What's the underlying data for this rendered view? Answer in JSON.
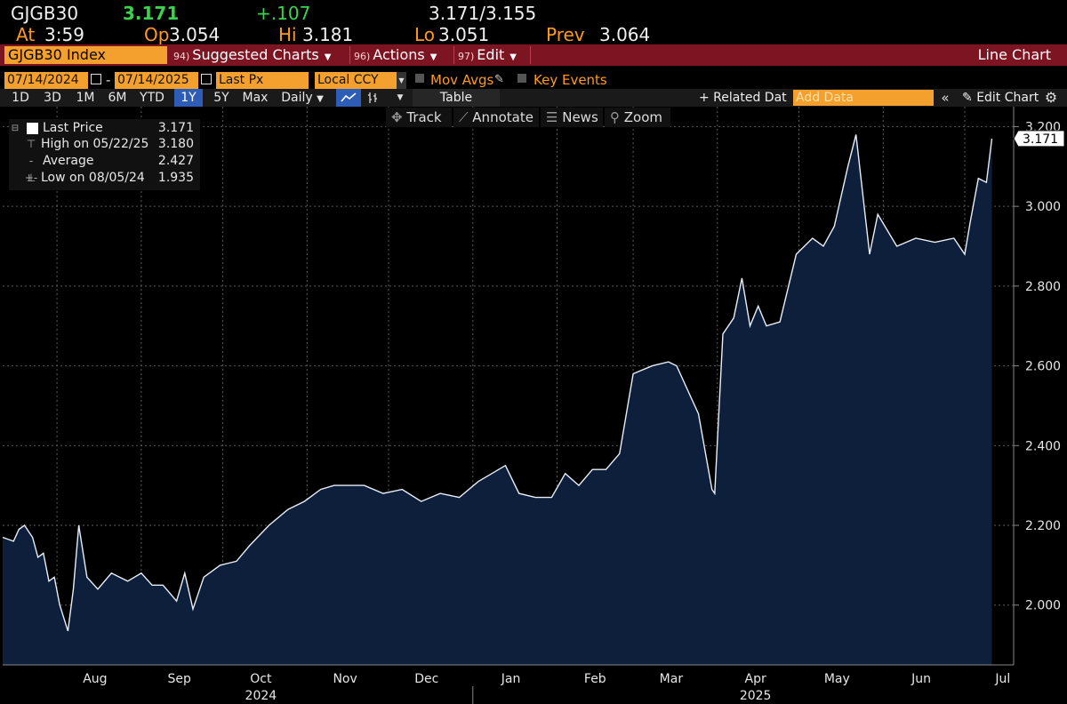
{
  "quote": {
    "ticker": "GJGB30",
    "last": "3.171",
    "change": "+.107",
    "bid_ask": "3.171/3.155",
    "at_label": "At",
    "at_time": "3:59",
    "open_label": "Op",
    "open": "3.054",
    "high_label": "Hi",
    "high": "3.181",
    "low_label": "Lo",
    "low": "3.051",
    "prev_label": "Prev",
    "prev": "3.064"
  },
  "toolbar": {
    "security": "GJGB30 Index",
    "suggested_num": "94)",
    "suggested_label": "Suggested Charts",
    "actions_num": "96)",
    "actions_label": "Actions",
    "edit_num": "97)",
    "edit_label": "Edit",
    "chart_type": "Line Chart"
  },
  "controls": {
    "start_date": "07/14/2024",
    "dash": "-",
    "end_date": "07/14/2025",
    "field": "Last Px",
    "currency": "Local CCY",
    "mov_avgs": "Mov Avgs",
    "key_events": "Key Events"
  },
  "range": {
    "buttons": [
      "1D",
      "3D",
      "1M",
      "6M",
      "YTD",
      "1Y",
      "5Y",
      "Max"
    ],
    "active": "1Y",
    "period": "Daily",
    "table": "Table",
    "related": "+ Related Dat",
    "add_data_placeholder": "Add Data",
    "edit_chart": "Edit Chart"
  },
  "chart_tools": {
    "track": "Track",
    "annotate": "Annotate",
    "news": "News",
    "zoom": "Zoom"
  },
  "legend": {
    "last_label": "Last Price",
    "last_value": "3.171",
    "high_label": "High on 05/22/25",
    "high_value": "3.180",
    "avg_label": "Average",
    "avg_value": "2.427",
    "low_label": "Low on 08/05/24",
    "low_value": "1.935"
  },
  "colors": {
    "accent_orange": "#f3a02f",
    "toolbar_red": "#7d1421",
    "area_fill": "#0d1f3b",
    "line": "#e8eef8",
    "change_green": "#3cd24c"
  },
  "chart_data": {
    "type": "area",
    "series": [
      {
        "values_by_date": [
          [
            "2024-07-12",
            2.17
          ],
          [
            "2024-07-16",
            2.16
          ],
          [
            "2024-07-18",
            2.19
          ],
          [
            "2024-07-20",
            2.2
          ],
          [
            "2024-07-23",
            2.17
          ],
          [
            "2024-07-25",
            2.12
          ],
          [
            "2024-07-27",
            2.13
          ],
          [
            "2024-07-29",
            2.06
          ],
          [
            "2024-07-31",
            2.07
          ],
          [
            "2024-08-02",
            2.0
          ],
          [
            "2024-08-05",
            1.935
          ],
          [
            "2024-08-07",
            2.04
          ],
          [
            "2024-08-09",
            2.2
          ],
          [
            "2024-08-12",
            2.07
          ],
          [
            "2024-08-16",
            2.04
          ],
          [
            "2024-08-21",
            2.08
          ],
          [
            "2024-08-27",
            2.06
          ],
          [
            "2024-09-01",
            2.08
          ],
          [
            "2024-09-05",
            2.05
          ],
          [
            "2024-09-09",
            2.05
          ],
          [
            "2024-09-14",
            2.01
          ],
          [
            "2024-09-17",
            2.08
          ],
          [
            "2024-09-20",
            1.99
          ],
          [
            "2024-09-24",
            2.07
          ],
          [
            "2024-09-30",
            2.1
          ],
          [
            "2024-10-06",
            2.11
          ],
          [
            "2024-10-11",
            2.15
          ],
          [
            "2024-10-18",
            2.2
          ],
          [
            "2024-10-25",
            2.24
          ],
          [
            "2024-10-31",
            2.26
          ],
          [
            "2024-11-06",
            2.29
          ],
          [
            "2024-11-11",
            2.3
          ],
          [
            "2024-11-22",
            2.3
          ],
          [
            "2024-11-29",
            2.28
          ],
          [
            "2024-12-06",
            2.29
          ],
          [
            "2024-12-13",
            2.26
          ],
          [
            "2024-12-20",
            2.28
          ],
          [
            "2024-12-27",
            2.27
          ],
          [
            "2025-01-03",
            2.31
          ],
          [
            "2025-01-08",
            2.33
          ],
          [
            "2025-01-13",
            2.35
          ],
          [
            "2025-01-18",
            2.28
          ],
          [
            "2025-01-24",
            2.27
          ],
          [
            "2025-01-30",
            2.27
          ],
          [
            "2025-02-04",
            2.33
          ],
          [
            "2025-02-09",
            2.3
          ],
          [
            "2025-02-14",
            2.34
          ],
          [
            "2025-02-19",
            2.34
          ],
          [
            "2025-02-24",
            2.38
          ],
          [
            "2025-03-01",
            2.58
          ],
          [
            "2025-03-08",
            2.6
          ],
          [
            "2025-03-14",
            2.61
          ],
          [
            "2025-03-17",
            2.6
          ],
          [
            "2025-03-21",
            2.54
          ],
          [
            "2025-03-25",
            2.48
          ],
          [
            "2025-03-30",
            2.29
          ],
          [
            "2025-03-31",
            2.28
          ],
          [
            "2025-04-03",
            2.68
          ],
          [
            "2025-04-07",
            2.72
          ],
          [
            "2025-04-10",
            2.82
          ],
          [
            "2025-04-13",
            2.7
          ],
          [
            "2025-04-16",
            2.75
          ],
          [
            "2025-04-19",
            2.7
          ],
          [
            "2025-04-24",
            2.71
          ],
          [
            "2025-04-30",
            2.88
          ],
          [
            "2025-05-06",
            2.92
          ],
          [
            "2025-05-10",
            2.9
          ],
          [
            "2025-05-14",
            2.95
          ],
          [
            "2025-05-19",
            3.1
          ],
          [
            "2025-05-22",
            3.18
          ],
          [
            "2025-05-27",
            2.88
          ],
          [
            "2025-05-30",
            2.98
          ],
          [
            "2025-06-06",
            2.9
          ],
          [
            "2025-06-13",
            2.92
          ],
          [
            "2025-06-20",
            2.91
          ],
          [
            "2025-06-27",
            2.92
          ],
          [
            "2025-07-01",
            2.88
          ],
          [
            "2025-07-03",
            2.96
          ],
          [
            "2025-07-06",
            3.07
          ],
          [
            "2025-07-09",
            3.06
          ],
          [
            "2025-07-11",
            3.17
          ]
        ]
      }
    ],
    "ylim": [
      1.85,
      3.25
    ],
    "yticks": [
      "2.000",
      "2.200",
      "2.400",
      "2.600",
      "2.800",
      "3.000",
      "3.200"
    ],
    "ytick_values": [
      2.0,
      2.2,
      2.4,
      2.6,
      2.8,
      3.0,
      3.2
    ],
    "last_tag": "3.171",
    "month_ticks": [
      {
        "label": "Aug",
        "date": "2024-08-15"
      },
      {
        "label": "Sep",
        "date": "2024-09-15"
      },
      {
        "label": "Oct",
        "date": "2024-10-15"
      },
      {
        "label": "Nov",
        "date": "2024-11-15"
      },
      {
        "label": "Dec",
        "date": "2024-12-15"
      },
      {
        "label": "Jan",
        "date": "2025-01-15"
      },
      {
        "label": "Feb",
        "date": "2025-02-15"
      },
      {
        "label": "Mar",
        "date": "2025-03-15"
      },
      {
        "label": "Apr",
        "date": "2025-04-15"
      },
      {
        "label": "May",
        "date": "2025-05-15"
      },
      {
        "label": "Jun",
        "date": "2025-06-15"
      },
      {
        "label": "Jul",
        "date": "2025-07-15"
      }
    ],
    "years": [
      {
        "label": "2024",
        "date": "2024-10-15"
      },
      {
        "label": "2025",
        "date": "2025-04-15"
      }
    ],
    "year_divider_date": "2025-01-01",
    "grid": true
  }
}
